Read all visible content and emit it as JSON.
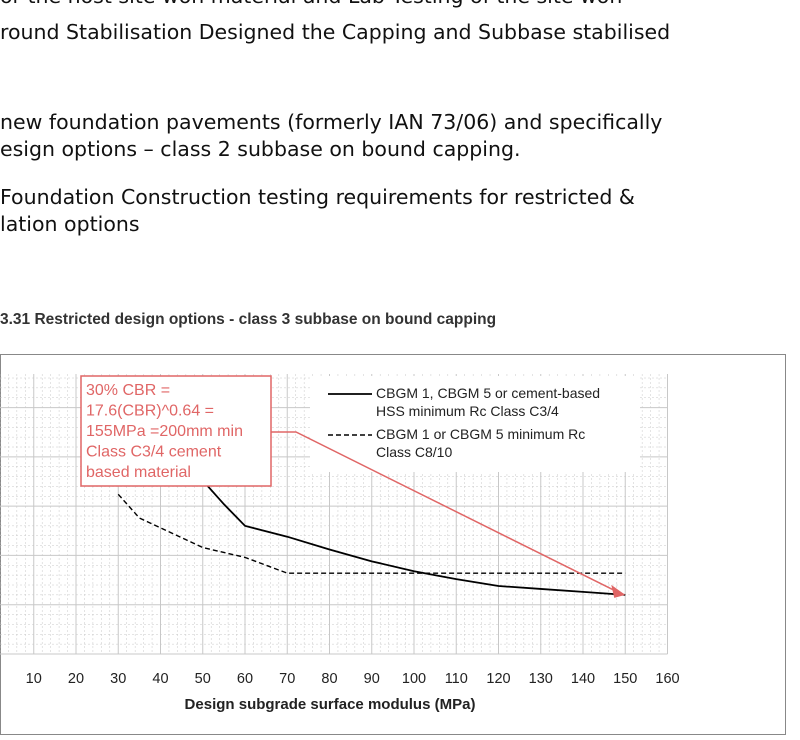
{
  "slide": {
    "lines": [
      "or the host site won material and Lab Testing of the site won",
      "round Stabilisation Designed the Capping and Subbase stabilised",
      "new foundation pavements (formerly IAN 73/06) and specifically",
      "esign options – class 2 subbase on bound capping.",
      "Foundation Construction testing requirements for restricted &",
      "lation options"
    ]
  },
  "figure": {
    "caption": "3.31 Restricted design options - class 3 subbase on bound capping"
  },
  "colors": {
    "annotation": "#e06666",
    "series": "#000000",
    "grid": "#c8c8c8",
    "frame": "#888888"
  },
  "chart_data": {
    "type": "line",
    "xlabel": "Design subgrade surface modulus (MPa)",
    "ylabel": "",
    "xlim": [
      0,
      160
    ],
    "xticks": [
      10,
      20,
      30,
      40,
      50,
      60,
      70,
      80,
      90,
      100,
      110,
      120,
      130,
      140,
      150,
      160
    ],
    "grid": true,
    "legend": "top-right",
    "series": [
      {
        "name": "CBGM 1, CBGM 5 or cement-based HSS minimum Rc Class C3/4",
        "legend_lines": [
          "CBGM 1, CBGM 5 or cement-based",
          "HSS minimum Rc Class C3/4"
        ],
        "style": "solid",
        "x": [
          30,
          35,
          40,
          45,
          50,
          55,
          60,
          70,
          80,
          90,
          100,
          110,
          120,
          130,
          140,
          150
        ],
        "y": [
          345,
          322,
          298,
          287,
          276,
          252,
          230,
          219,
          206,
          194,
          184,
          176,
          169,
          166,
          163,
          160
        ]
      },
      {
        "name": "CBGM 1 or CBGM 5 minimum Rc Class C8/10",
        "legend_lines": [
          "CBGM 1 or CBGM 5 minimum Rc",
          "Class C8/10"
        ],
        "style": "dashed",
        "x": [
          30,
          35,
          40,
          50,
          60,
          70,
          80,
          90,
          100,
          110,
          120,
          130,
          140,
          150
        ],
        "y": [
          262,
          238,
          228,
          208,
          198,
          182,
          182,
          182,
          182,
          182,
          182,
          182,
          182,
          182
        ]
      }
    ],
    "annotation": {
      "lines": [
        "30% CBR =",
        "17.6(CBR)^0.64 =",
        "155MPa =200mm min",
        "Class C3/4 cement",
        "based material"
      ],
      "points_to": [
        150,
        160
      ]
    }
  }
}
